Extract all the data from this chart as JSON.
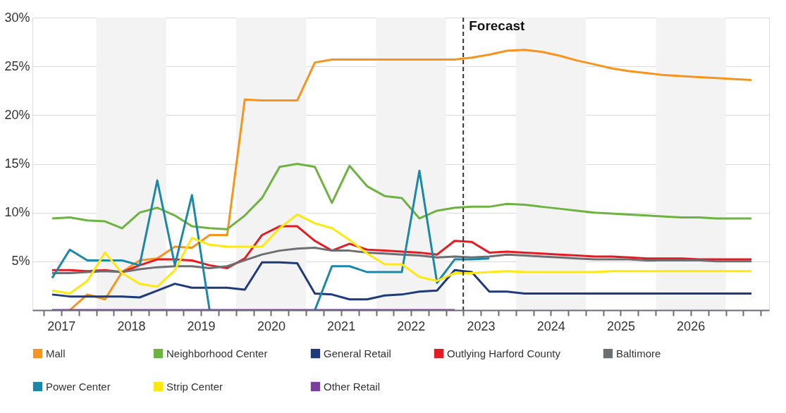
{
  "chart_data": {
    "type": "line",
    "line_style": "solid",
    "legend": "bottom",
    "grid": "y",
    "x": [
      "2017-05-15",
      "2017-08-15",
      "2017-11-15",
      "2018-02-15",
      "2018-05-15",
      "2018-08-15",
      "2018-11-15",
      "2019-02-15",
      "2019-05-15",
      "2019-08-15",
      "2019-11-15",
      "2020-02-15",
      "2020-05-15",
      "2020-08-15",
      "2020-11-15",
      "2021-02-15",
      "2021-05-15",
      "2021-08-15",
      "2021-11-15",
      "2022-02-15",
      "2022-05-15",
      "2022-08-15",
      "2022-11-15",
      "2023-02-15",
      "2023-05-15",
      "2023-08-15",
      "2023-11-15",
      "2024-02-15",
      "2024-05-15",
      "2024-08-15",
      "2024-11-15",
      "2025-02-15",
      "2025-05-15",
      "2025-08-15",
      "2025-11-15",
      "2026-02-15",
      "2026-05-15",
      "2026-08-15",
      "2026-11-15",
      "2027-02-15",
      "2027-05-15"
    ],
    "series": [
      {
        "name": "Mall",
        "color": "#f7941d",
        "values": [
          null,
          0,
          1.6,
          1.1,
          3.9,
          5.1,
          5.3,
          6.5,
          6.4,
          7.7,
          7.7,
          21.6,
          21.5,
          21.5,
          21.5,
          25.4,
          25.7,
          25.7,
          25.7,
          25.7,
          25.7,
          25.7,
          25.7,
          25.7,
          25.9,
          26.2,
          26.6,
          26.7,
          26.5,
          26.1,
          25.6,
          25.2,
          24.8,
          24.5,
          24.3,
          24.1,
          24.0,
          23.9,
          23.8,
          23.7,
          23.6
        ]
      },
      {
        "name": "Neighborhood Center",
        "color": "#6db33f",
        "values": [
          9.4,
          9.5,
          9.2,
          9.1,
          8.4,
          10.0,
          10.5,
          9.7,
          8.6,
          8.4,
          8.3,
          9.7,
          11.5,
          14.7,
          15.0,
          14.7,
          11.0,
          14.8,
          12.7,
          11.7,
          11.5,
          9.4,
          10.2,
          10.5,
          10.6,
          10.6,
          10.9,
          10.8,
          10.6,
          10.4,
          10.2,
          10.0,
          9.9,
          9.8,
          9.7,
          9.6,
          9.5,
          9.5,
          9.4,
          9.4,
          9.4
        ]
      },
      {
        "name": "General Retail",
        "color": "#1f3a7a",
        "values": [
          1.6,
          1.4,
          1.4,
          1.4,
          1.4,
          1.3,
          2.0,
          2.7,
          2.3,
          2.3,
          2.3,
          2.1,
          4.9,
          4.9,
          4.8,
          1.7,
          1.6,
          1.1,
          1.1,
          1.5,
          1.6,
          1.9,
          2.0,
          4.1,
          3.9,
          1.9,
          1.9,
          1.7,
          1.7,
          1.7,
          1.7,
          1.7,
          1.7,
          1.7,
          1.7,
          1.7,
          1.7,
          1.7,
          1.7,
          1.7,
          1.7
        ]
      },
      {
        "name": "Outlying Harford County",
        "color": "#e31b23",
        "values": [
          4.1,
          4.1,
          4.0,
          4.1,
          3.9,
          4.6,
          5.2,
          5.2,
          5.1,
          4.6,
          4.3,
          5.3,
          7.7,
          8.6,
          8.6,
          7.1,
          6.1,
          6.8,
          6.2,
          6.1,
          6.0,
          5.9,
          5.7,
          7.1,
          7.0,
          5.9,
          6.0,
          5.9,
          5.8,
          5.7,
          5.6,
          5.5,
          5.5,
          5.4,
          5.3,
          5.3,
          5.3,
          5.2,
          5.2,
          5.2,
          5.2
        ]
      },
      {
        "name": "Baltimore",
        "color": "#6d6e71",
        "values": [
          3.8,
          3.8,
          3.9,
          4.0,
          3.9,
          4.2,
          4.4,
          4.5,
          4.5,
          4.3,
          4.5,
          5.1,
          5.7,
          6.1,
          6.3,
          6.4,
          6.1,
          6.1,
          5.9,
          5.8,
          5.7,
          5.6,
          5.4,
          5.5,
          5.4,
          5.5,
          5.7,
          5.6,
          5.5,
          5.4,
          5.3,
          5.2,
          5.2,
          5.2,
          5.1,
          5.1,
          5.1,
          5.1,
          5.0,
          5.0,
          5.0
        ]
      },
      {
        "name": "Power Center",
        "color": "#1b88a8",
        "values": [
          3.3,
          6.2,
          5.1,
          5.1,
          5.1,
          4.6,
          13.3,
          4.6,
          11.8,
          0,
          null,
          null,
          null,
          null,
          null,
          0,
          4.5,
          4.5,
          3.9,
          3.9,
          3.9,
          14.3,
          2.8,
          5.2,
          5.2,
          5.3,
          null,
          null,
          null,
          null,
          null,
          null,
          null,
          null,
          null,
          null,
          null,
          null,
          null,
          null,
          null
        ]
      },
      {
        "name": "Strip Center",
        "color": "#fde910",
        "values": [
          2.0,
          1.7,
          3.0,
          5.9,
          3.8,
          2.7,
          2.4,
          4.1,
          7.4,
          6.7,
          6.5,
          6.5,
          6.5,
          8.4,
          9.8,
          8.9,
          8.4,
          7.2,
          5.8,
          4.7,
          4.7,
          3.4,
          3.0,
          3.8,
          3.8,
          3.9,
          4.0,
          3.9,
          3.9,
          3.9,
          3.9,
          3.9,
          4.0,
          4.0,
          4.0,
          4.0,
          4.0,
          4.0,
          4.0,
          4.0,
          4.0
        ]
      },
      {
        "name": "Other Retail",
        "color": "#7b3fa0",
        "values": [
          0,
          0,
          0,
          0,
          0,
          0,
          0,
          0,
          0,
          0,
          0,
          0,
          0,
          0,
          0,
          0,
          0,
          0,
          0,
          0,
          0,
          0,
          0,
          0,
          null,
          null,
          null,
          null,
          null,
          null,
          null,
          null,
          null,
          null,
          null,
          null,
          null,
          null,
          null,
          null,
          null
        ]
      }
    ],
    "xlim": [
      "2017-02-01",
      "2027-08-15"
    ],
    "xticks": [
      {
        "value": "2017-04-01",
        "label": null
      },
      {
        "value": "2017-07-01",
        "label": "2017"
      },
      {
        "value": "2017-10-01",
        "label": null
      },
      {
        "value": "2018-01-01",
        "label": null
      },
      {
        "value": "2018-04-01",
        "label": null
      },
      {
        "value": "2018-07-01",
        "label": "2018"
      },
      {
        "value": "2018-10-01",
        "label": null
      },
      {
        "value": "2019-01-01",
        "label": null
      },
      {
        "value": "2019-04-01",
        "label": null
      },
      {
        "value": "2019-07-01",
        "label": "2019"
      },
      {
        "value": "2019-10-01",
        "label": null
      },
      {
        "value": "2020-01-01",
        "label": null
      },
      {
        "value": "2020-04-01",
        "label": null
      },
      {
        "value": "2020-07-01",
        "label": "2020"
      },
      {
        "value": "2020-10-01",
        "label": null
      },
      {
        "value": "2021-01-01",
        "label": null
      },
      {
        "value": "2021-04-01",
        "label": null
      },
      {
        "value": "2021-07-01",
        "label": "2021"
      },
      {
        "value": "2021-10-01",
        "label": null
      },
      {
        "value": "2022-01-01",
        "label": null
      },
      {
        "value": "2022-04-01",
        "label": null
      },
      {
        "value": "2022-07-01",
        "label": "2022"
      },
      {
        "value": "2022-10-01",
        "label": null
      },
      {
        "value": "2023-01-01",
        "label": null
      },
      {
        "value": "2023-04-01",
        "label": null
      },
      {
        "value": "2023-07-01",
        "label": "2023"
      },
      {
        "value": "2023-10-01",
        "label": null
      },
      {
        "value": "2024-01-01",
        "label": null
      },
      {
        "value": "2024-04-01",
        "label": null
      },
      {
        "value": "2024-07-01",
        "label": "2024"
      },
      {
        "value": "2024-10-01",
        "label": null
      },
      {
        "value": "2025-01-01",
        "label": null
      },
      {
        "value": "2025-04-01",
        "label": null
      },
      {
        "value": "2025-07-01",
        "label": "2025"
      },
      {
        "value": "2025-10-01",
        "label": null
      },
      {
        "value": "2026-01-01",
        "label": null
      },
      {
        "value": "2026-04-01",
        "label": null
      },
      {
        "value": "2026-07-01",
        "label": "2026"
      },
      {
        "value": "2026-10-01",
        "label": null
      },
      {
        "value": "2027-01-01",
        "label": null
      },
      {
        "value": "2027-04-01",
        "label": null
      },
      {
        "value": "2027-07-01",
        "label": null
      }
    ],
    "ylim": [
      0,
      30
    ],
    "yticks": [
      {
        "value": 5,
        "label": "5%"
      },
      {
        "value": 10,
        "label": "10%"
      },
      {
        "value": 15,
        "label": "15%"
      },
      {
        "value": 20,
        "label": "20%"
      },
      {
        "value": 25,
        "label": "25%"
      },
      {
        "value": 30,
        "label": "30%"
      }
    ],
    "ref_lines": [
      {
        "axis": "x",
        "value": "2023-04-01",
        "label": "Forecast",
        "color": "#333333",
        "line_style": "dashed"
      }
    ],
    "bands": [
      {
        "axis": "x",
        "from": "2018-01-01",
        "to": "2019-01-01",
        "color": "#f3f3f3"
      },
      {
        "axis": "x",
        "from": "2020-01-01",
        "to": "2021-01-01",
        "color": "#f3f3f3"
      },
      {
        "axis": "x",
        "from": "2022-01-01",
        "to": "2023-01-01",
        "color": "#f3f3f3"
      },
      {
        "axis": "x",
        "from": "2024-01-01",
        "to": "2025-01-01",
        "color": "#f3f3f3"
      },
      {
        "axis": "x",
        "from": "2026-01-01",
        "to": "2027-01-01",
        "color": "#f3f3f3"
      }
    ]
  }
}
